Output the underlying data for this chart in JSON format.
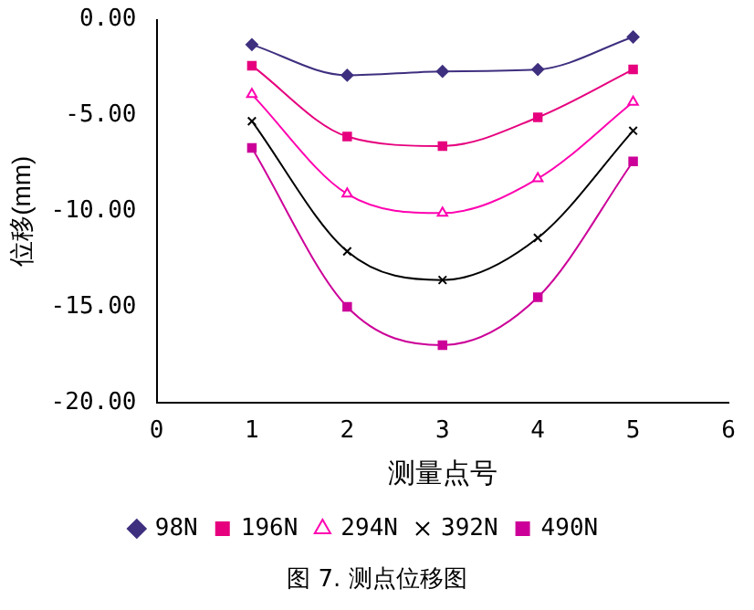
{
  "chart_data": {
    "type": "line",
    "xlabel": "测量点号",
    "ylabel": "位移(mm)",
    "x": [
      1,
      2,
      3,
      4,
      5
    ],
    "xlim": [
      0,
      6
    ],
    "xticks": [
      0,
      1,
      2,
      3,
      4,
      5,
      6
    ],
    "ylim": [
      -20,
      0
    ],
    "yticks": [
      {
        "value": -20,
        "label": "-20.00"
      },
      {
        "value": -15,
        "label": "-15.00"
      },
      {
        "value": -10,
        "label": "-10.00"
      },
      {
        "value": -5,
        "label": "-5.00"
      },
      {
        "value": 0,
        "label": "0.00"
      }
    ],
    "grid": false,
    "legend": "bottom",
    "annotations": [
      "图 7. 测点位移图"
    ],
    "series": [
      {
        "name": "98N",
        "color": "#3f2f7f",
        "marker": "diamond",
        "values": [
          -1.3,
          -2.9,
          -2.7,
          -2.6,
          -0.9
        ]
      },
      {
        "name": "196N",
        "color": "#e6007e",
        "marker": "square",
        "values": [
          -2.4,
          -6.1,
          -6.6,
          -5.1,
          -2.6
        ]
      },
      {
        "name": "294N",
        "color": "#ff00b0",
        "marker": "triangle",
        "values": [
          -3.9,
          -9.1,
          -10.1,
          -8.3,
          -4.3
        ]
      },
      {
        "name": "392N",
        "color": "#000000",
        "marker": "cross",
        "values": [
          -5.3,
          -12.1,
          -13.6,
          -11.4,
          -5.8
        ]
      },
      {
        "name": "490N",
        "color": "#cc0099",
        "marker": "square",
        "values": [
          -6.7,
          -15.0,
          -17.0,
          -14.5,
          -7.4
        ]
      }
    ]
  }
}
